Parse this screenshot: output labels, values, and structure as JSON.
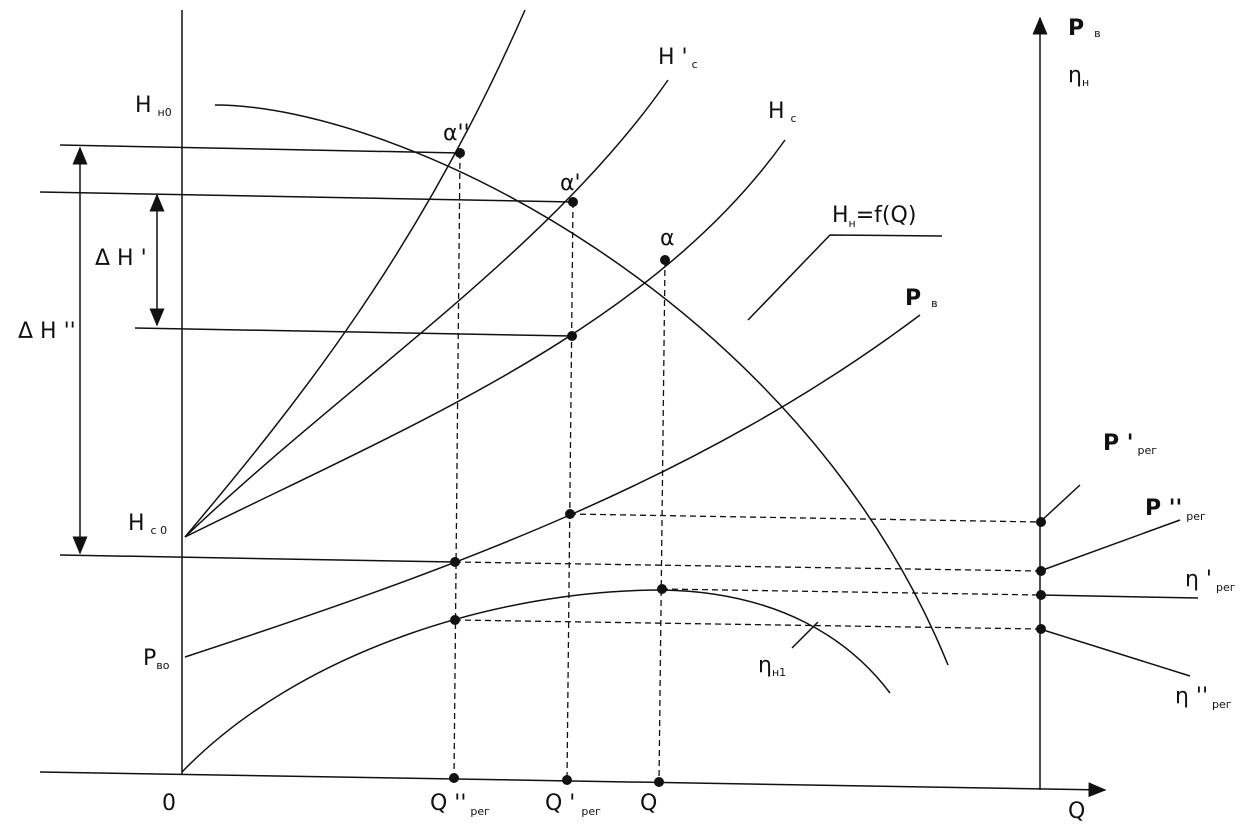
{
  "labels": {
    "H_n0": {
      "text": "H",
      "sub": "н0"
    },
    "alpha2": {
      "text": "α''"
    },
    "alpha1": {
      "text": "α'"
    },
    "alpha": {
      "text": "α"
    },
    "H1_c": {
      "text": "H '",
      "sub": "с"
    },
    "H_c": {
      "text": "H",
      "sub": "с"
    },
    "H_n_fQ": {
      "text": "H",
      "sub": "н",
      "rest": "=f(Q)"
    },
    "dH1": {
      "text": "Δ H '"
    },
    "dH2": {
      "text": "Δ H ''"
    },
    "P_v": {
      "text": "P",
      "sub": "в"
    },
    "H_c0": {
      "text": "H",
      "sub": "с 0"
    },
    "P_v0": {
      "text": "P",
      "sub": "во"
    },
    "eta_n1": {
      "text": "η",
      "sub": "н1"
    },
    "zero": {
      "text": "0"
    },
    "Q2_reg": {
      "text": "Q ''",
      "sub": "рег"
    },
    "Q1_reg": {
      "text": "Q '",
      "sub": "рег"
    },
    "Q": {
      "text": "Q"
    },
    "Q_axis": {
      "text": "Q"
    },
    "P_v_axis": {
      "text": "P",
      "sub": "в"
    },
    "eta_n_axis": {
      "text": "η",
      "sub": "н"
    },
    "P1_reg": {
      "text": "P '",
      "sub": "рег"
    },
    "P2_reg": {
      "text": "P ''",
      "sub": "рег"
    },
    "eta1_reg": {
      "text": "η '",
      "sub": "рег"
    },
    "eta2_reg": {
      "text": "η ''",
      "sub": "рег"
    }
  }
}
